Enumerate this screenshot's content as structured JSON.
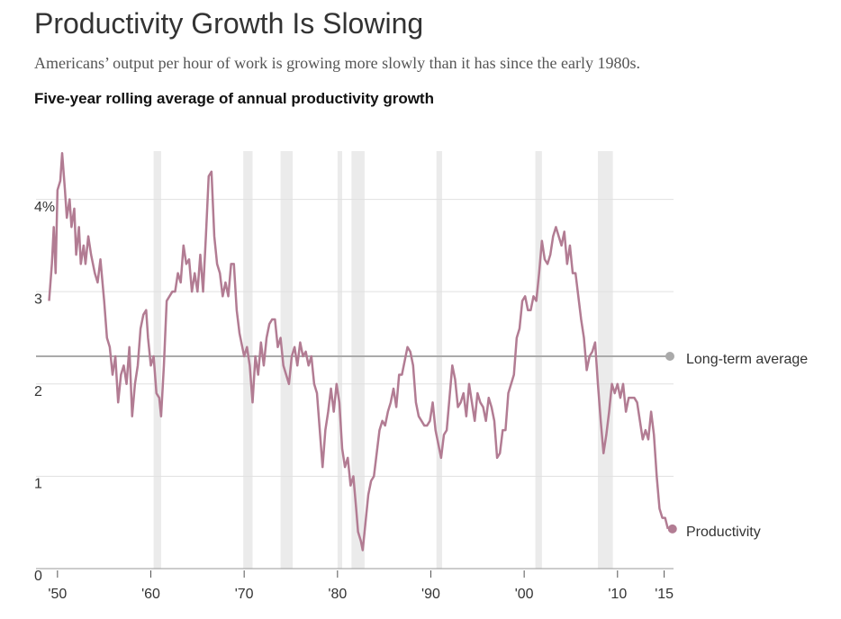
{
  "title": "Productivity Growth Is Slowing",
  "subtitle": "Americans’ output per hour of work is growing more slowly than it has since the early 1980s.",
  "chart_data": {
    "type": "line",
    "title": "Five-year rolling average of annual productivity growth",
    "x": [
      1949.1,
      1949.4,
      1949.6,
      1949.8,
      1950.0,
      1950.3,
      1950.5,
      1950.8,
      1951.0,
      1951.3,
      1951.5,
      1951.8,
      1952.0,
      1952.3,
      1952.5,
      1952.8,
      1953.0,
      1953.3,
      1953.6,
      1954.0,
      1954.3,
      1954.6,
      1955.0,
      1955.3,
      1955.6,
      1955.9,
      1956.2,
      1956.5,
      1956.8,
      1957.1,
      1957.4,
      1957.7,
      1958.0,
      1958.3,
      1958.6,
      1958.9,
      1959.2,
      1959.5,
      1959.7,
      1960.0,
      1960.3,
      1960.6,
      1960.9,
      1961.1,
      1961.4,
      1961.7,
      1962.0,
      1962.3,
      1962.6,
      1962.9,
      1963.2,
      1963.5,
      1963.8,
      1964.1,
      1964.4,
      1964.7,
      1965.0,
      1965.3,
      1965.6,
      1965.9,
      1966.2,
      1966.5,
      1966.8,
      1967.1,
      1967.4,
      1967.7,
      1968.0,
      1968.3,
      1968.6,
      1968.9,
      1969.2,
      1969.5,
      1969.8,
      1970.0,
      1970.3,
      1970.6,
      1970.9,
      1971.2,
      1971.5,
      1971.8,
      1972.1,
      1972.4,
      1972.7,
      1973.0,
      1973.3,
      1973.6,
      1973.9,
      1974.2,
      1974.5,
      1974.8,
      1975.1,
      1975.4,
      1975.7,
      1976.0,
      1976.3,
      1976.6,
      1976.9,
      1977.2,
      1977.5,
      1977.8,
      1978.1,
      1978.4,
      1978.7,
      1979.0,
      1979.3,
      1979.6,
      1979.9,
      1980.2,
      1980.5,
      1980.8,
      1981.1,
      1981.4,
      1981.7,
      1982.0,
      1982.2,
      1982.5,
      1982.7,
      1983.0,
      1983.3,
      1983.6,
      1983.9,
      1984.2,
      1984.5,
      1984.8,
      1985.1,
      1985.4,
      1985.7,
      1986.0,
      1986.3,
      1986.6,
      1986.9,
      1987.2,
      1987.5,
      1987.8,
      1988.1,
      1988.4,
      1988.7,
      1989.0,
      1989.3,
      1989.6,
      1989.9,
      1990.2,
      1990.5,
      1990.8,
      1991.1,
      1991.4,
      1991.7,
      1992.0,
      1992.3,
      1992.6,
      1992.9,
      1993.2,
      1993.5,
      1993.8,
      1994.1,
      1994.4,
      1994.7,
      1995.0,
      1995.3,
      1995.6,
      1995.9,
      1996.2,
      1996.5,
      1996.8,
      1997.1,
      1997.4,
      1997.7,
      1998.0,
      1998.3,
      1998.6,
      1998.9,
      1999.2,
      1999.5,
      1999.8,
      2000.1,
      2000.4,
      2000.7,
      2001.0,
      2001.3,
      2001.6,
      2001.9,
      2002.2,
      2002.5,
      2002.8,
      2003.1,
      2003.4,
      2003.7,
      2004.0,
      2004.3,
      2004.6,
      2004.9,
      2005.2,
      2005.5,
      2005.8,
      2006.1,
      2006.4,
      2006.7,
      2007.0,
      2007.3,
      2007.6,
      2007.9,
      2008.2,
      2008.5,
      2008.8,
      2009.1,
      2009.4,
      2009.7,
      2010.0,
      2010.3,
      2010.6,
      2010.9,
      2011.2,
      2011.5,
      2011.8,
      2012.1,
      2012.4,
      2012.7,
      2013.0,
      2013.3,
      2013.6,
      2013.9,
      2014.2,
      2014.5,
      2014.8,
      2015.1,
      2015.4
    ],
    "series": [
      {
        "name": "Productivity",
        "color": "#b27c93",
        "values": [
          2.9,
          3.3,
          3.7,
          3.2,
          4.1,
          4.2,
          4.5,
          4.1,
          3.8,
          4.0,
          3.7,
          3.9,
          3.4,
          3.7,
          3.3,
          3.5,
          3.3,
          3.6,
          3.4,
          3.2,
          3.1,
          3.35,
          2.9,
          2.5,
          2.4,
          2.1,
          2.3,
          1.8,
          2.1,
          2.2,
          2.0,
          2.4,
          1.65,
          2.0,
          2.2,
          2.6,
          2.75,
          2.8,
          2.5,
          2.2,
          2.3,
          1.9,
          1.85,
          1.65,
          2.2,
          2.9,
          2.95,
          3.0,
          3.0,
          3.2,
          3.1,
          3.5,
          3.3,
          3.35,
          3.0,
          3.2,
          3.0,
          3.4,
          3.0,
          3.6,
          4.25,
          4.3,
          3.6,
          3.3,
          3.2,
          2.95,
          3.1,
          2.95,
          3.3,
          3.3,
          2.8,
          2.55,
          2.4,
          2.3,
          2.4,
          2.2,
          1.8,
          2.3,
          2.1,
          2.45,
          2.2,
          2.5,
          2.65,
          2.7,
          2.7,
          2.4,
          2.5,
          2.2,
          2.1,
          2.0,
          2.3,
          2.4,
          2.2,
          2.45,
          2.3,
          2.35,
          2.2,
          2.3,
          2.0,
          1.9,
          1.5,
          1.1,
          1.5,
          1.7,
          1.95,
          1.7,
          2.0,
          1.8,
          1.3,
          1.1,
          1.2,
          0.9,
          1.0,
          0.65,
          0.4,
          0.3,
          0.2,
          0.5,
          0.8,
          0.95,
          1.0,
          1.25,
          1.5,
          1.6,
          1.55,
          1.7,
          1.8,
          1.95,
          1.75,
          2.1,
          2.1,
          2.25,
          2.4,
          2.35,
          2.2,
          1.8,
          1.65,
          1.6,
          1.55,
          1.55,
          1.6,
          1.8,
          1.5,
          1.35,
          1.2,
          1.45,
          1.5,
          1.85,
          2.2,
          2.05,
          1.75,
          1.8,
          1.9,
          1.65,
          2.0,
          1.8,
          1.6,
          1.9,
          1.8,
          1.75,
          1.6,
          1.85,
          1.75,
          1.6,
          1.2,
          1.25,
          1.5,
          1.5,
          1.9,
          2.0,
          2.1,
          2.5,
          2.6,
          2.9,
          2.95,
          2.8,
          2.8,
          2.95,
          2.9,
          3.2,
          3.55,
          3.35,
          3.3,
          3.4,
          3.6,
          3.7,
          3.6,
          3.5,
          3.65,
          3.3,
          3.5,
          3.2,
          3.2,
          2.95,
          2.7,
          2.5,
          2.15,
          2.3,
          2.35,
          2.45,
          2.0,
          1.6,
          1.25,
          1.45,
          1.7,
          2.0,
          1.9,
          2.0,
          1.85,
          2.0,
          1.7,
          1.85,
          1.85,
          1.85,
          1.8,
          1.6,
          1.4,
          1.5,
          1.4,
          1.7,
          1.45,
          1.0,
          0.65,
          0.55,
          0.55,
          0.43
        ]
      }
    ],
    "average": {
      "label": "Long-term average",
      "value": 2.3,
      "color": "#aaaaaa"
    },
    "recessions": [
      [
        1960.3,
        1961.1
      ],
      [
        1969.9,
        1970.9
      ],
      [
        1973.9,
        1975.2
      ],
      [
        1980.0,
        1980.5
      ],
      [
        1981.5,
        1982.9
      ],
      [
        1990.6,
        1991.2
      ],
      [
        2001.2,
        2001.9
      ],
      [
        2007.9,
        2009.5
      ]
    ],
    "recession_color": "#ebebeb",
    "xlim": [
      1947.7,
      2016
    ],
    "ylim": [
      0,
      4.6
    ],
    "xticks": [
      {
        "value": 1950,
        "label": "'50"
      },
      {
        "value": 1960,
        "label": "'60"
      },
      {
        "value": 1970,
        "label": "'70"
      },
      {
        "value": 1980,
        "label": "'80"
      },
      {
        "value": 1990,
        "label": "'90"
      },
      {
        "value": 2000,
        "label": "'00"
      },
      {
        "value": 2010,
        "label": "'10"
      },
      {
        "value": 2015,
        "label": "'15"
      }
    ],
    "yticks": [
      0,
      1,
      2,
      3,
      {
        "value": 4,
        "label": "4%"
      }
    ],
    "grid": true
  }
}
